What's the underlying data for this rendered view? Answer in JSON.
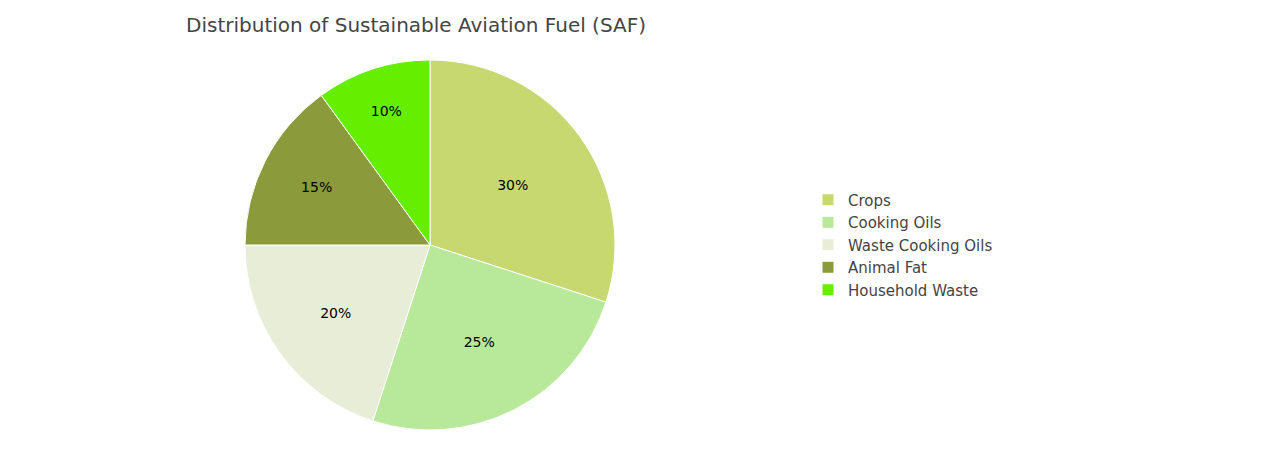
{
  "chart_data": {
    "type": "pie",
    "title": "Distribution of Sustainable Aviation Fuel (SAF)",
    "categories": [
      "Crops",
      "Cooking Oils",
      "Waste Cooking Oils",
      "Animal Fat",
      "Household Waste"
    ],
    "values": [
      30,
      25,
      20,
      15,
      10
    ],
    "value_labels": [
      "30%",
      "25%",
      "20%",
      "15%",
      "10%"
    ],
    "colors": [
      "#c8d870",
      "#b8e89a",
      "#e8edd8",
      "#8b9a3a",
      "#66ee00"
    ],
    "data_labels": true,
    "legend": "right"
  }
}
